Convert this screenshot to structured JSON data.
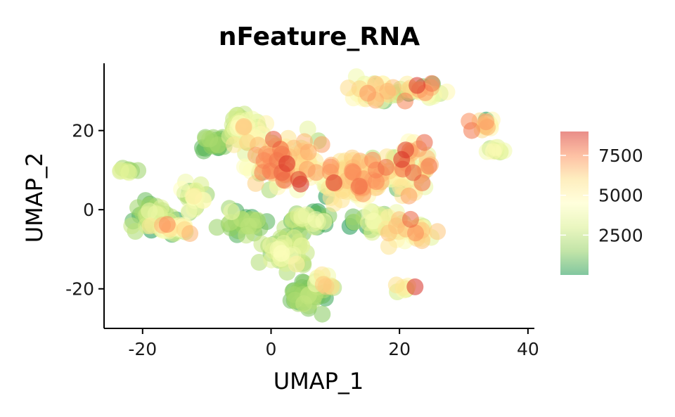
{
  "chart_data": {
    "type": "scatter",
    "title": "nFeature_RNA",
    "xlabel": "UMAP_1",
    "ylabel": "UMAP_2",
    "xlim": [
      -26,
      41
    ],
    "ylim": [
      -30,
      37
    ],
    "xticks": [
      -20,
      0,
      20,
      40
    ],
    "yticks": [
      -20,
      0,
      20
    ],
    "xtick_labels": [
      "-20",
      "0",
      "20",
      "40"
    ],
    "ytick_labels": [
      "-20",
      "0",
      "20"
    ],
    "grid": false,
    "color_scale": {
      "name": "RdYlGn (reversed)",
      "min": 0,
      "max": 9000,
      "ticks": [
        2500,
        5000,
        7500
      ],
      "tick_labels": [
        "2500",
        "5000",
        "7500"
      ],
      "colors": [
        "#1a9850",
        "#91cf60",
        "#d9ef8b",
        "#ffffbf",
        "#fee08b",
        "#fc8d59",
        "#d73027"
      ],
      "legend_position": "right"
    },
    "clusters": [
      {
        "cx": 13,
        "cy": 8,
        "sx": 4.5,
        "sy": 5,
        "v": 5200,
        "sd": 1600,
        "n": 120
      },
      {
        "cx": 21,
        "cy": 10,
        "sx": 3.5,
        "sy": 5,
        "v": 5000,
        "sd": 1800,
        "n": 80
      },
      {
        "cx": 2,
        "cy": 12,
        "sx": 4.5,
        "sy": 5,
        "v": 5300,
        "sd": 1600,
        "n": 100
      },
      {
        "cx": -4,
        "cy": 20,
        "sx": 3,
        "sy": 3.5,
        "v": 3500,
        "sd": 1600,
        "n": 55
      },
      {
        "cx": -9,
        "cy": 17,
        "sx": 1.5,
        "sy": 2,
        "v": 1000,
        "sd": 500,
        "n": 22
      },
      {
        "cx": 16,
        "cy": 30,
        "sx": 3,
        "sy": 2,
        "v": 4200,
        "sd": 1800,
        "n": 40
      },
      {
        "cx": 23,
        "cy": 30,
        "sx": 2.5,
        "sy": 2,
        "v": 5000,
        "sd": 1600,
        "n": 30
      },
      {
        "cx": 33,
        "cy": 21,
        "sx": 1.5,
        "sy": 2,
        "v": 4600,
        "sd": 1600,
        "n": 16
      },
      {
        "cx": 35,
        "cy": 15,
        "sx": 1.5,
        "sy": 1.2,
        "v": 3000,
        "sd": 1200,
        "n": 10
      },
      {
        "cx": -18,
        "cy": -2,
        "sx": 2.5,
        "sy": 3,
        "v": 1600,
        "sd": 900,
        "n": 55
      },
      {
        "cx": -15,
        "cy": -5,
        "sx": 2.5,
        "sy": 1.5,
        "v": 4000,
        "sd": 1600,
        "n": 30
      },
      {
        "cx": -12,
        "cy": 3,
        "sx": 2,
        "sy": 3,
        "v": 3000,
        "sd": 1400,
        "n": 25
      },
      {
        "cx": -22,
        "cy": 10,
        "sx": 1.2,
        "sy": 1,
        "v": 2500,
        "sd": 900,
        "n": 8
      },
      {
        "cx": -4,
        "cy": -3,
        "sx": 3,
        "sy": 2.5,
        "v": 1500,
        "sd": 700,
        "n": 30
      },
      {
        "cx": 2,
        "cy": -10,
        "sx": 3.5,
        "sy": 3.5,
        "v": 2400,
        "sd": 1200,
        "n": 50
      },
      {
        "cx": 6,
        "cy": -22,
        "sx": 3,
        "sy": 3,
        "v": 1500,
        "sd": 700,
        "n": 45
      },
      {
        "cx": 8,
        "cy": -18,
        "sx": 2,
        "sy": 2,
        "v": 4200,
        "sd": 1400,
        "n": 12
      },
      {
        "cx": 6,
        "cy": -3,
        "sx": 3,
        "sy": 2.5,
        "v": 2200,
        "sd": 1200,
        "n": 30
      },
      {
        "cx": 22,
        "cy": -5,
        "sx": 3,
        "sy": 3,
        "v": 5000,
        "sd": 1600,
        "n": 40
      },
      {
        "cx": 16,
        "cy": -3,
        "sx": 3,
        "sy": 2.5,
        "v": 3200,
        "sd": 1600,
        "n": 30
      },
      {
        "cx": 21,
        "cy": -20,
        "sx": 1.2,
        "sy": 1,
        "v": 4500,
        "sd": 1600,
        "n": 8
      }
    ]
  }
}
